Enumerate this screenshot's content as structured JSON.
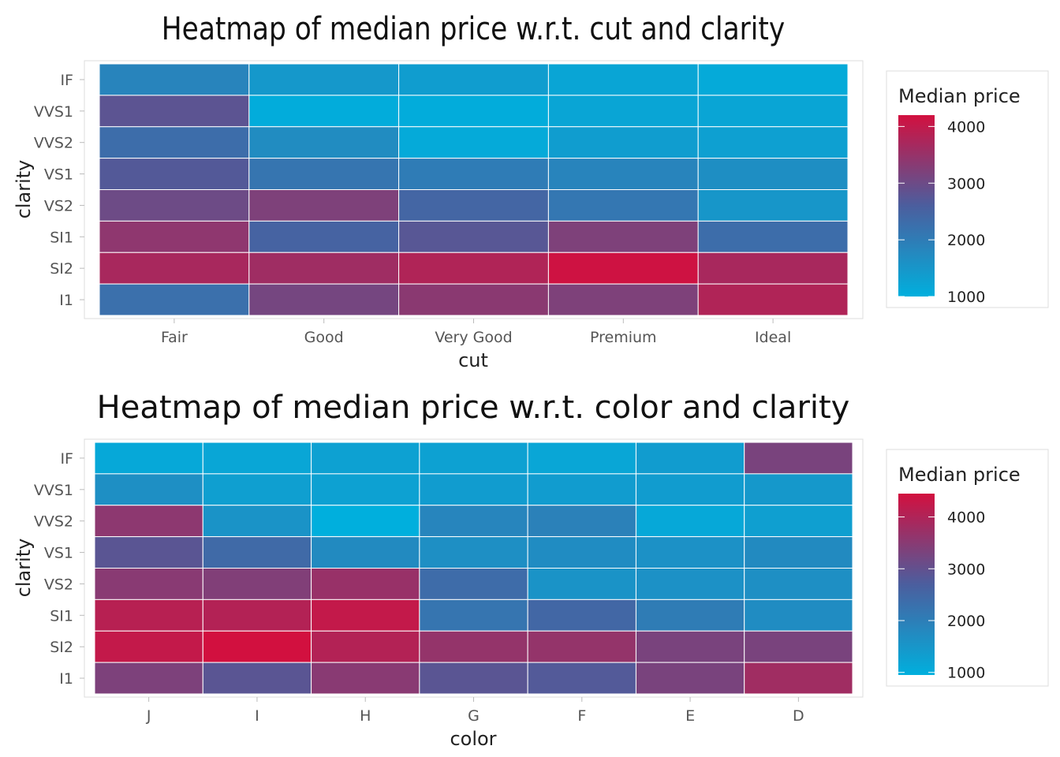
{
  "colors": {
    "low": "#00AFDD",
    "mid": "#4B5E9E",
    "high": "#D2103F"
  },
  "chart_data": [
    {
      "type": "heatmap",
      "title": "Heatmap of median price w.r.t. cut and clarity",
      "xlabel": "cut",
      "ylabel": "clarity",
      "x_categories": [
        "Fair",
        "Good",
        "Very Good",
        "Premium",
        "Ideal"
      ],
      "y_categories": [
        "IF",
        "VVS1",
        "VVS2",
        "VS1",
        "VS2",
        "SI1",
        "SI2",
        "I1"
      ],
      "values": [
        [
          1850,
          1450,
          1350,
          1200,
          1100
        ],
        [
          2800,
          1050,
          1050,
          1200,
          1200
        ],
        [
          2300,
          1700,
          1100,
          1350,
          1300
        ],
        [
          2700,
          2150,
          2000,
          1850,
          1650
        ],
        [
          3000,
          3200,
          2450,
          2100,
          1500
        ],
        [
          3400,
          2500,
          2750,
          3200,
          2300
        ],
        [
          3700,
          3600,
          3800,
          4150,
          3700
        ],
        [
          2250,
          3100,
          3350,
          3200,
          3800
        ]
      ],
      "legend": {
        "title": "Median price",
        "ticks": [
          1000,
          2000,
          3000,
          4000
        ],
        "range": [
          1000,
          4200
        ],
        "position": "right"
      }
    },
    {
      "type": "heatmap",
      "title": "Heatmap of median price w.r.t. color and clarity",
      "xlabel": "color",
      "ylabel": "clarity",
      "x_categories": [
        "J",
        "I",
        "H",
        "G",
        "F",
        "E",
        "D"
      ],
      "y_categories": [
        "IF",
        "VVS1",
        "VVS2",
        "VS1",
        "VS2",
        "SI1",
        "SI2",
        "I1"
      ],
      "values": [
        [
          1100,
          1150,
          1250,
          1250,
          1150,
          1350,
          3300
        ],
        [
          1650,
          1300,
          1250,
          1350,
          1350,
          1350,
          1450
        ],
        [
          3550,
          1550,
          950,
          1850,
          1950,
          1100,
          1300
        ],
        [
          2900,
          2450,
          1750,
          1650,
          1700,
          1600,
          1750
        ],
        [
          3500,
          3400,
          3700,
          2400,
          1550,
          1600,
          1650
        ],
        [
          4100,
          4050,
          4250,
          2200,
          2500,
          2050,
          1700
        ],
        [
          4250,
          4450,
          4050,
          3650,
          3650,
          3300,
          3300
        ],
        [
          3350,
          2900,
          3500,
          2900,
          2800,
          3300,
          3800
        ]
      ],
      "legend": {
        "title": "Median price",
        "ticks": [
          1000,
          2000,
          3000,
          4000
        ],
        "range": [
          950,
          4450
        ],
        "position": "right"
      }
    }
  ]
}
